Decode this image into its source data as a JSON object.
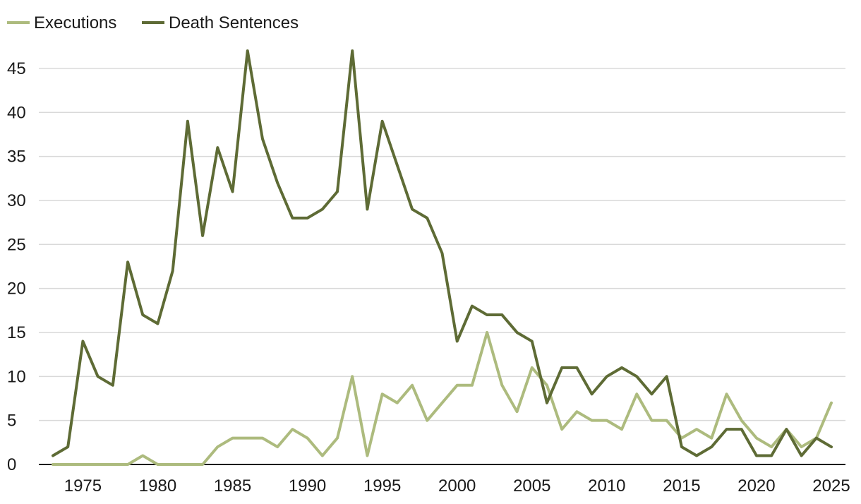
{
  "chart_data": {
    "type": "line",
    "title": "",
    "xlabel": "",
    "ylabel": "",
    "x": [
      1973,
      1974,
      1975,
      1976,
      1977,
      1978,
      1979,
      1980,
      1981,
      1982,
      1983,
      1984,
      1985,
      1986,
      1987,
      1988,
      1989,
      1990,
      1991,
      1992,
      1993,
      1994,
      1995,
      1996,
      1997,
      1998,
      1999,
      2000,
      2001,
      2002,
      2003,
      2004,
      2005,
      2006,
      2007,
      2008,
      2009,
      2010,
      2011,
      2012,
      2013,
      2014,
      2015,
      2016,
      2017,
      2018,
      2019,
      2020,
      2021,
      2022,
      2023,
      2024,
      2025
    ],
    "series": [
      {
        "name": "Executions",
        "color": "#adbb7e",
        "values": [
          0,
          0,
          0,
          0,
          0,
          0,
          1,
          0,
          0,
          0,
          0,
          2,
          3,
          3,
          3,
          2,
          4,
          3,
          1,
          3,
          10,
          1,
          8,
          7,
          9,
          5,
          7,
          9,
          9,
          15,
          9,
          6,
          11,
          9,
          4,
          6,
          5,
          5,
          4,
          8,
          5,
          5,
          3,
          4,
          3,
          8,
          5,
          3,
          2,
          4,
          2,
          3,
          7
        ]
      },
      {
        "name": "Death Sentences",
        "color": "#5e6b35",
        "values": [
          1,
          2,
          14,
          10,
          9,
          23,
          17,
          16,
          22,
          39,
          26,
          36,
          31,
          47,
          37,
          32,
          28,
          28,
          29,
          31,
          47,
          29,
          39,
          34,
          29,
          28,
          24,
          14,
          18,
          17,
          17,
          15,
          14,
          7,
          11,
          11,
          8,
          10,
          11,
          10,
          8,
          10,
          2,
          1,
          2,
          4,
          4,
          1,
          1,
          4,
          1,
          3,
          2
        ]
      }
    ],
    "x_ticks": [
      "1975",
      "1980",
      "1985",
      "1990",
      "1995",
      "2000",
      "2005",
      "2010",
      "2015",
      "2020",
      "2025"
    ],
    "y_ticks": [
      "0",
      "5",
      "10",
      "15",
      "20",
      "25",
      "30",
      "35",
      "40",
      "45"
    ],
    "xlim": [
      1973,
      2025
    ],
    "ylim": [
      0,
      47
    ],
    "grid": "horizontal",
    "legend": "top-left"
  }
}
